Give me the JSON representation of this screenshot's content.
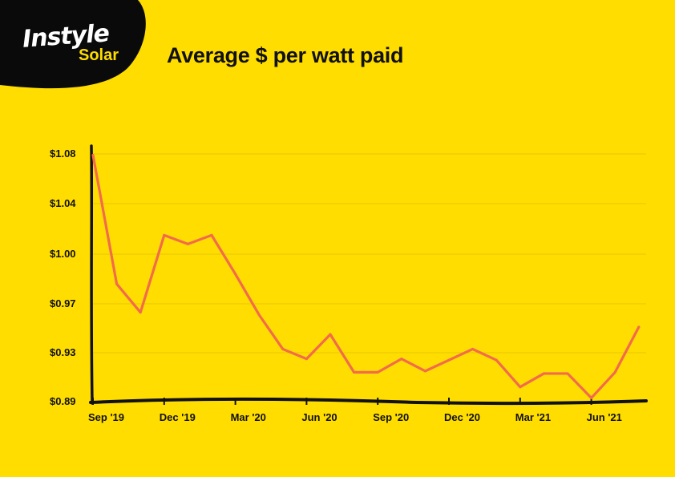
{
  "brand": {
    "logo_main": "Instyle",
    "logo_sub": "Solar"
  },
  "colors": {
    "background": "#FFDD00",
    "line": "#F26B4A",
    "axis": "#111111",
    "grid": "#E8C800",
    "logo_bg": "#0A0A0A"
  },
  "chart_data": {
    "type": "line",
    "title": "Average $ per watt paid",
    "xlabel": "",
    "ylabel": "",
    "y_tick_labels": [
      "$1.08",
      "$1.04",
      "$1.00",
      "$0.97",
      "$0.93",
      "$0.89"
    ],
    "y_tick_values": [
      1.08,
      1.04,
      1.0,
      0.97,
      0.93,
      0.89
    ],
    "ylim": [
      0.89,
      1.08
    ],
    "x_tick_labels": [
      "Sep '19",
      "Dec '19",
      "Mar '20",
      "Jun '20",
      "Sep '20",
      "Dec '20",
      "Mar '21",
      "Jun '21"
    ],
    "grid": true,
    "series": [
      {
        "x": [
          "Sep 2019",
          "Oct 2019",
          "Nov 2019",
          "Dec 2019",
          "Jan 2020",
          "Feb 2020",
          "Mar 2020",
          "Apr 2020",
          "May 2020",
          "Jun 2020",
          "Jul 2020",
          "Aug 2020",
          "Sep 2020",
          "Oct 2020",
          "Nov 2020",
          "Dec 2020",
          "Jan 2021",
          "Feb 2021",
          "Mar 2021",
          "Apr 2021",
          "May 2021",
          "Jun 2021",
          "Jul 2021",
          "Aug 2021"
        ],
        "values": [
          1.079,
          0.982,
          0.963,
          1.015,
          1.008,
          1.015,
          0.988,
          0.961,
          0.933,
          0.925,
          0.945,
          0.914,
          0.914,
          0.925,
          0.915,
          0.924,
          0.933,
          0.924,
          0.902,
          0.913,
          0.913,
          0.893,
          0.914,
          0.951
        ]
      }
    ]
  }
}
